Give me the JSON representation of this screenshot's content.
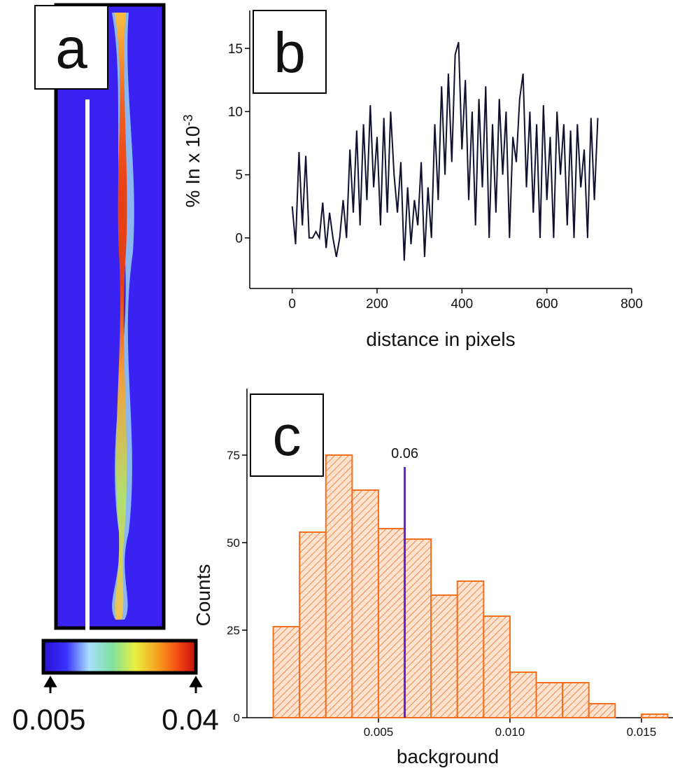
{
  "chart_data": [
    {
      "type": "image",
      "label": "a",
      "colorbar_ticks": [
        0.005,
        0.04
      ]
    },
    {
      "type": "line",
      "label": "b",
      "xlabel": "distance in pixels",
      "ylabel": "% In x 10",
      "ylabel_exponent": "-3",
      "color": "#101030",
      "xlim": [
        -100,
        800
      ],
      "ylim": [
        -4,
        18
      ],
      "xticks": [
        0,
        200,
        400,
        600,
        800
      ],
      "yticks": [
        0,
        5,
        10,
        15
      ],
      "x": [
        0,
        8,
        16,
        24,
        32,
        40,
        48,
        56,
        64,
        72,
        80,
        88,
        96,
        104,
        112,
        120,
        128,
        136,
        144,
        152,
        160,
        168,
        176,
        184,
        192,
        200,
        208,
        216,
        224,
        232,
        240,
        248,
        256,
        264,
        272,
        280,
        288,
        296,
        304,
        312,
        320,
        328,
        336,
        344,
        352,
        360,
        368,
        376,
        384,
        392,
        400,
        408,
        416,
        424,
        432,
        440,
        448,
        456,
        464,
        472,
        480,
        488,
        496,
        504,
        512,
        520,
        528,
        536,
        544,
        552,
        560,
        568,
        576,
        584,
        592,
        600,
        608,
        616,
        624,
        632,
        640,
        648,
        656,
        664,
        672,
        680,
        688,
        696,
        704,
        712,
        720
      ],
      "values": [
        2.5,
        -0.5,
        6.8,
        1,
        6.5,
        0,
        0,
        0.5,
        0,
        2.8,
        -0.8,
        2,
        0,
        -1.5,
        0,
        3,
        0,
        7,
        2,
        8.5,
        1,
        9,
        3,
        10.5,
        4,
        8,
        1,
        9.5,
        2,
        10,
        5,
        2,
        6,
        -1.8,
        4,
        -0.5,
        3,
        1,
        6,
        -1.5,
        4,
        0,
        9,
        3,
        12,
        5,
        13,
        6,
        14.5,
        15.5,
        7,
        12.5,
        3,
        10,
        1,
        11,
        4,
        12,
        0,
        9,
        2,
        11,
        5,
        10,
        0,
        8,
        6,
        11,
        13,
        4,
        10,
        2,
        9,
        0,
        10.5,
        3,
        8,
        0,
        10,
        5,
        9,
        1,
        8.5,
        0,
        9,
        4,
        7,
        0,
        9.5,
        3,
        9.5
      ]
    },
    {
      "type": "histogram",
      "label": "c",
      "xlabel": "background",
      "ylabel": "Counts",
      "color": "#f07020",
      "xlim": [
        0,
        0.0162
      ],
      "ylim": [
        0,
        94
      ],
      "xticks": [
        0.005,
        {
          "value": 0.01,
          "label": "0.010"
        },
        0.015
      ],
      "yticks": [
        0,
        25,
        50,
        75
      ],
      "bins": [
        0.001,
        0.002,
        0.003,
        0.004,
        0.005,
        0.006,
        0.007,
        0.008,
        0.009,
        0.01,
        0.011,
        0.012,
        0.013,
        0.014,
        0.015,
        0.016
      ],
      "values": [
        26,
        53,
        75,
        65,
        54,
        51,
        35,
        39,
        29,
        13,
        10,
        10,
        4,
        0,
        1
      ],
      "annotations": [
        {
          "x": 0.006,
          "text": "0.06",
          "color": "#6a1fd6"
        }
      ]
    }
  ]
}
